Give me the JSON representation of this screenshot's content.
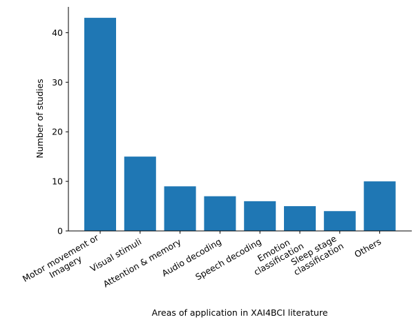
{
  "chart_data": {
    "type": "bar",
    "categories": [
      [
        "Motor movement or",
        "Imagery"
      ],
      [
        "Visual stimuli"
      ],
      [
        "Attention & memory"
      ],
      [
        "Audio decoding"
      ],
      [
        "Speech decoding"
      ],
      [
        "Emotion",
        "classification"
      ],
      [
        "Sleep stage",
        "classification"
      ],
      [
        "Others"
      ]
    ],
    "values": [
      43,
      15,
      9,
      7,
      6,
      5,
      4,
      10
    ],
    "xlabel": "Areas of application in XAI4BCI literature",
    "ylabel": "Number of studies",
    "yticks": [
      0,
      10,
      20,
      30,
      40
    ],
    "ylim": [
      0,
      45.2
    ],
    "bar_color": "#1f77b4",
    "grid": false,
    "spines": [
      "left",
      "bottom"
    ]
  }
}
